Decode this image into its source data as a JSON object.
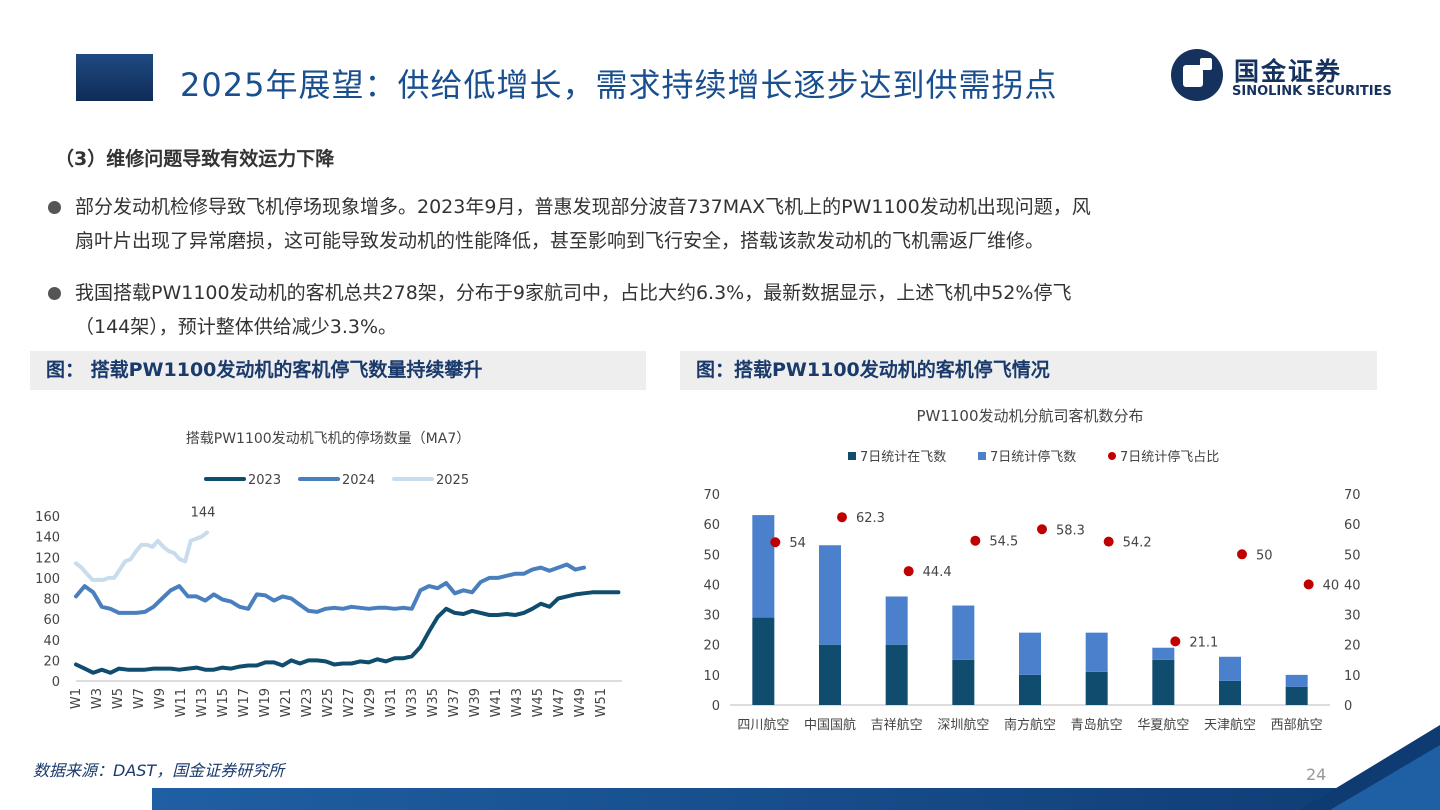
{
  "header": {
    "title": "2025年展望：供给低增长，需求持续增长逐步达到供需拐点",
    "logo_cn": "国金证券",
    "logo_en": "SINOLINK SECURITIES"
  },
  "section": {
    "heading": "（3）维修问题导致有效运力下降",
    "bullets": [
      {
        "line1": "部分发动机检修导致飞机停场现象增多。2023年9月，普惠发现部分波音737MAX飞机上的PW1100发动机出现问题，风",
        "line2": "扇叶片出现了异常磨损，这可能导致发动机的性能降低，甚至影响到飞行安全，搭载该款发动机的飞机需返厂维修。"
      },
      {
        "line1": "我国搭载PW1100发动机的客机总共278架，分布于9家航司中，占比大约6.3%，最新数据显示，上述飞机中52%停飞",
        "line2": "（144架），预计整体供给减少3.3%。"
      }
    ]
  },
  "figures": {
    "left_caption": "图： 搭载PW1100发动机的客机停飞数量持续攀升",
    "right_caption": "图：搭载PW1100发动机的客机停飞情况"
  },
  "chart_data": [
    {
      "type": "line",
      "title": "搭载PW1100发动机飞机的停场数量（MA7）",
      "ylim": [
        0,
        160
      ],
      "yticks": [
        0,
        20,
        40,
        60,
        80,
        100,
        120,
        140,
        160
      ],
      "x_tick_labels": [
        "W1",
        "W3",
        "W5",
        "W7",
        "W9",
        "W11",
        "W13",
        "W15",
        "W17",
        "W19",
        "W21",
        "W23",
        "W25",
        "W27",
        "W29",
        "W31",
        "W33",
        "W35",
        "W37",
        "W39",
        "W41",
        "W43",
        "W45",
        "W47",
        "W49",
        "W51"
      ],
      "legend": "top",
      "annotation": {
        "text": "144",
        "series": "2025",
        "week": 23
      },
      "colors": {
        "2023": "#0f4c6e",
        "2024": "#4a7fbf",
        "2025": "#c9dced"
      },
      "series": [
        {
          "name": "2023",
          "start_week": 1,
          "values": [
            16,
            12,
            8,
            11,
            8,
            12,
            11,
            11,
            11,
            12,
            12,
            12,
            11,
            12,
            13,
            11,
            11,
            13,
            12,
            14,
            15,
            15,
            18,
            18,
            15,
            20,
            17,
            20,
            20,
            19,
            16,
            17,
            17,
            19,
            18,
            21,
            19,
            22,
            22,
            24,
            33,
            48,
            62,
            70,
            66,
            65,
            68,
            66,
            64,
            64,
            65,
            64,
            66,
            70,
            75,
            72,
            80,
            82,
            84,
            85,
            86,
            86,
            86,
            86
          ],
          "plot_values_per_week": 0.82
        },
        {
          "name": "2024",
          "start_week": 1,
          "values": [
            82,
            92,
            86,
            72,
            70,
            66,
            66,
            66,
            67,
            72,
            80,
            88,
            92,
            82,
            82,
            78,
            84,
            79,
            77,
            72,
            70,
            84,
            83,
            78,
            82,
            80,
            74,
            68,
            67,
            70,
            71,
            70,
            72,
            71,
            70,
            71,
            71,
            70,
            71,
            70,
            88,
            92,
            90,
            95,
            85,
            88,
            86,
            96,
            100,
            100,
            102,
            104,
            104,
            108,
            110,
            107,
            110,
            113,
            108,
            110
          ],
          "plot_values_per_week": 0.82
        },
        {
          "name": "2025",
          "start_week": 1,
          "values": [
            114,
            110,
            104,
            98,
            98,
            98,
            100,
            100,
            108,
            116,
            118,
            126,
            132,
            132,
            130,
            136,
            130,
            126,
            124,
            118,
            116,
            136,
            138,
            140,
            144
          ],
          "plot_values_per_week": 0.52
        }
      ]
    },
    {
      "type": "bar",
      "title": "PW1100发动机分航司客机数分布",
      "legend": "top",
      "categories": [
        "四川航空",
        "中国国航",
        "吉祥航空",
        "深圳航空",
        "南方航空",
        "青岛航空",
        "华夏航空",
        "天津航空",
        "西部航空"
      ],
      "ylim": [
        0,
        70
      ],
      "y2lim": [
        0,
        70
      ],
      "yticks": [
        0,
        10,
        20,
        30,
        40,
        50,
        60,
        70
      ],
      "colors": {
        "7日统计在飞数": "#0f4c6e",
        "7日统计停飞数": "#4a80cc",
        "7日统计停飞占比": "#c00000"
      },
      "series": [
        {
          "name": "7日统计在飞数",
          "values": [
            29,
            20,
            20,
            15,
            10,
            11,
            15,
            8,
            6
          ]
        },
        {
          "name": "7日统计停飞数",
          "values": [
            34,
            33,
            16,
            18,
            14,
            13,
            4,
            8,
            4
          ]
        },
        {
          "name": "7日统计停飞占比",
          "axis": "right",
          "values": [
            54,
            62.3,
            44.4,
            54.5,
            58.3,
            54.2,
            21.1,
            50,
            40
          ]
        }
      ]
    }
  ],
  "footer": {
    "source": "数据来源：DAST，国金证券研究所",
    "page": "24"
  }
}
